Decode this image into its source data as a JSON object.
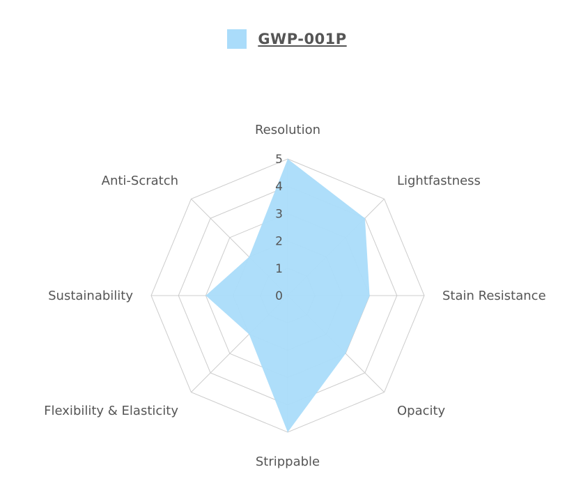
{
  "chart_data": {
    "type": "radar",
    "categories": [
      "Resolution",
      "Lightfastness",
      "Stain Resistance",
      "Opacity",
      "Strippable",
      "Flexibility & Elasticity",
      "Sustainability",
      "Anti-Scratch"
    ],
    "series": [
      {
        "name": "GWP-001P",
        "values": [
          5,
          4,
          3,
          3,
          5,
          2,
          3,
          2
        ]
      }
    ],
    "ticks": [
      "0",
      "1",
      "2",
      "3",
      "4",
      "5"
    ],
    "rmin": 0,
    "rmax": 5,
    "legend_position": "top",
    "colors": {
      "fill": "#aadcfa",
      "grid": "#cccccc",
      "text": "#555555"
    }
  }
}
